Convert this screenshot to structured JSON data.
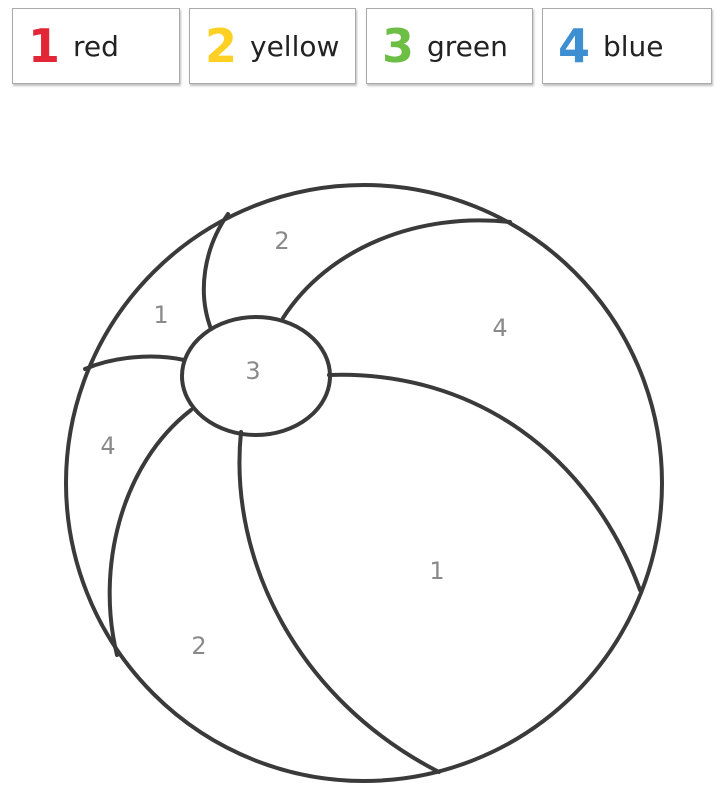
{
  "legend": [
    {
      "number": "1",
      "word": "red",
      "color": "#e32636"
    },
    {
      "number": "2",
      "word": "yellow",
      "color": "#fdd023"
    },
    {
      "number": "3",
      "word": "green",
      "color": "#6cbe45"
    },
    {
      "number": "4",
      "word": "blue",
      "color": "#3d8fd1"
    }
  ],
  "regions": {
    "top_left_wedge": "1",
    "top_wedge": "2",
    "top_right_panel": "4",
    "center_cap": "3",
    "left_panel": "4",
    "bottom_left_panel": "2",
    "bottom_right_panel": "1"
  },
  "colors": {
    "outline": "#3a3a3a",
    "region_number": "#8a8a8a"
  }
}
